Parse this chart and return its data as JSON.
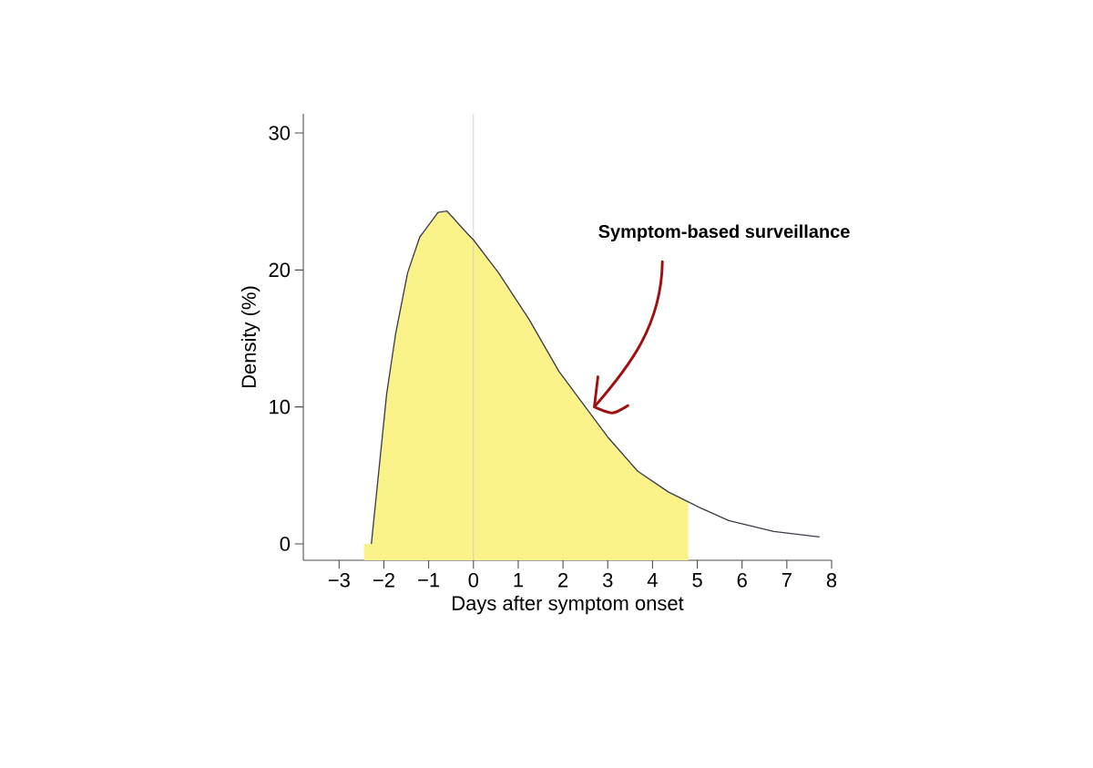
{
  "chart_data": {
    "type": "line",
    "xlabel": "Days after symptom onset",
    "ylabel": "Density (%)",
    "annotations": [
      "Symptom-based surveillance"
    ],
    "x": [
      -2.28,
      -2.08,
      -1.94,
      -1.74,
      -1.47,
      -1.2,
      -0.79,
      -0.59,
      -0.12,
      0,
      0.56,
      1.24,
      1.91,
      2.59,
      3.0,
      3.67,
      4.35,
      5.02,
      5.7,
      6.71,
      7.73
    ],
    "series": [
      {
        "color": "#3c3c4c",
        "values": [
          0,
          6.4,
          10.9,
          15.3,
          19.8,
          22.4,
          24.2,
          24.3,
          22.6,
          22.2,
          19.8,
          16.4,
          12.6,
          9.6,
          7.8,
          5.3,
          3.8,
          2.7,
          1.7,
          0.9,
          0.5
        ]
      }
    ],
    "xlim": [
      -3.8,
      8
    ],
    "ylim": [
      -1.2,
      31.4
    ],
    "xticks": [
      {
        "value": -3,
        "label": "−3"
      },
      {
        "value": -2,
        "label": "−2"
      },
      {
        "value": -1,
        "label": "−1"
      },
      0,
      1,
      2,
      3,
      4,
      5,
      6,
      7,
      8
    ],
    "yticks": [
      0,
      10,
      20,
      30
    ],
    "ref_lines": [
      {
        "axis": "x",
        "value": 0,
        "color": "#c8c8c8"
      }
    ],
    "bands": [
      {
        "axis": "x",
        "from": -2.45,
        "to": 4.8,
        "color": "#fbf28a"
      }
    ],
    "grid": false,
    "marker": "none"
  }
}
